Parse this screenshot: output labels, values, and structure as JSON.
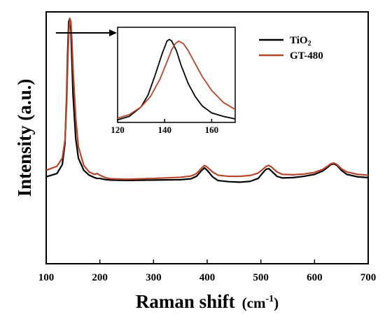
{
  "chart_data": [
    {
      "type": "line",
      "xlabel": "Raman shift",
      "xlabel_unit": "(cm",
      "xlabel_unit_sup": "-1",
      "xlabel_unit_close": ")",
      "ylabel": "Intensity (a.u.)",
      "xlim": [
        100,
        700
      ],
      "ylim": [
        0,
        100
      ],
      "x_ticks": [
        100,
        200,
        300,
        400,
        500,
        600,
        700
      ],
      "y_ticks_visible": false,
      "grid": false,
      "legend_placement": "top-right",
      "series": [
        {
          "name": "TiO",
          "name_sub": "2",
          "color": "#000000",
          "x": [
            100,
            120,
            130,
            135,
            138,
            140,
            142,
            144,
            146,
            148,
            150,
            155,
            160,
            170,
            180,
            190,
            195,
            200,
            210,
            220,
            250,
            300,
            350,
            370,
            380,
            390,
            395,
            400,
            410,
            420,
            440,
            460,
            480,
            495,
            505,
            510,
            515,
            520,
            530,
            540,
            560,
            580,
            600,
            615,
            625,
            630,
            636,
            642,
            650,
            660,
            680,
            700
          ],
          "y": [
            1.5,
            3.5,
            9,
            22,
            50,
            78,
            97,
            99,
            92,
            72,
            52,
            25,
            13,
            5.5,
            2.5,
            1.0,
            0.5,
            0.5,
            -0.2,
            -0.5,
            -0.7,
            -0.5,
            -0.3,
            0.3,
            1.8,
            5.5,
            7.0,
            5.5,
            1.5,
            -0.8,
            -1.5,
            -1.8,
            -1.3,
            0.5,
            4.5,
            6.2,
            6.5,
            5.0,
            1.8,
            0.8,
            1.0,
            1.8,
            3.0,
            5.0,
            7.5,
            9.0,
            9.5,
            8.5,
            5.5,
            3.0,
            1.5,
            1.0
          ]
        },
        {
          "name": "GT-480",
          "color": "#b5452b",
          "x": [
            100,
            120,
            130,
            135,
            138,
            140,
            142,
            144,
            146,
            148,
            150,
            155,
            160,
            170,
            180,
            190,
            195,
            200,
            210,
            220,
            250,
            300,
            350,
            370,
            380,
            390,
            395,
            400,
            410,
            420,
            440,
            460,
            480,
            495,
            505,
            510,
            515,
            520,
            530,
            540,
            560,
            580,
            600,
            615,
            625,
            630,
            636,
            642,
            650,
            660,
            680,
            700
          ],
          "y": [
            5.5,
            8.0,
            13,
            24,
            45,
            70,
            90,
            99,
            97,
            85,
            68,
            38,
            20,
            8.5,
            4.5,
            3.0,
            3.5,
            2.5,
            1.0,
            0.3,
            0.0,
            0.5,
            1.2,
            2.0,
            3.5,
            7.0,
            8.5,
            7.5,
            4.5,
            2.5,
            1.8,
            1.8,
            2.3,
            3.8,
            6.5,
            8.0,
            8.5,
            7.5,
            4.5,
            3.0,
            2.8,
            3.2,
            4.2,
            6.0,
            8.2,
            9.5,
            10.0,
            9.0,
            6.5,
            4.5,
            3.0,
            2.5
          ]
        }
      ],
      "annotations": [
        {
          "type": "arrow",
          "from_x": 118,
          "to_x": 140,
          "y": 92
        }
      ]
    },
    {
      "type": "line",
      "role": "inset",
      "xlim": [
        120,
        170
      ],
      "ylim": [
        0,
        110
      ],
      "x_ticks": [
        120,
        140,
        160
      ],
      "y_ticks_visible": false,
      "grid": false,
      "series": [
        {
          "name": "TiO",
          "name_sub": "2",
          "color": "#000000",
          "x": [
            120,
            125,
            130,
            133,
            136,
            139,
            141,
            142,
            143,
            145,
            147,
            150,
            153,
            156,
            160,
            165,
            170
          ],
          "y": [
            3,
            7,
            18,
            32,
            55,
            80,
            94,
            96,
            94,
            83,
            66,
            45,
            30,
            19,
            11,
            7,
            4
          ]
        },
        {
          "name": "GT-480",
          "color": "#b5452b",
          "x": [
            120,
            125,
            130,
            134,
            138,
            141,
            143,
            144.5,
            146,
            148,
            150,
            153,
            156,
            160,
            165,
            170
          ],
          "y": [
            5,
            9,
            18,
            30,
            50,
            70,
            84,
            91,
            94,
            91,
            83,
            68,
            53,
            37,
            23,
            15
          ]
        }
      ]
    }
  ]
}
